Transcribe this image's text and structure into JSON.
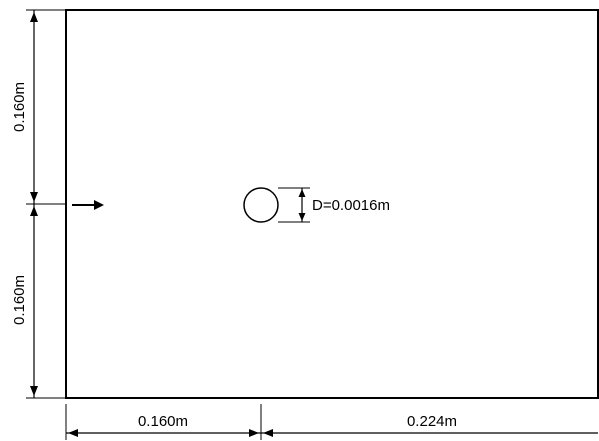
{
  "diagram": {
    "labels": {
      "left_upper_height": "0.160m",
      "left_lower_height": "0.160m",
      "bottom_left_width": "0.160m",
      "bottom_right_width": "0.224m",
      "cylinder_diameter": "D=0.0016m"
    },
    "icons": {
      "inflow_arrow": "arrow-right-icon",
      "cylinder": "circle-icon"
    },
    "colors": {
      "stroke": "#000000",
      "background": "#ffffff"
    }
  }
}
